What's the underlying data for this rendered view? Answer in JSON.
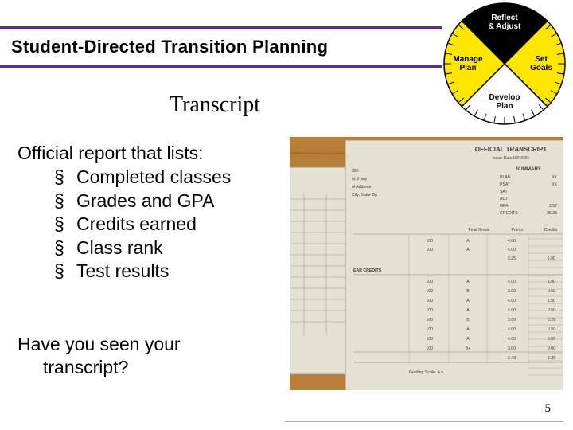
{
  "header": {
    "title": "Student-Directed Transition Planning",
    "band_border_color": "#5b2e8a"
  },
  "wheel": {
    "segments": [
      {
        "label_line1": "Reflect",
        "label_line2": "& Adjust",
        "fill": "#000000",
        "text_color": "#ffffff"
      },
      {
        "label_line1": "Set",
        "label_line2": "Goals",
        "fill": "#ffe600",
        "text_color": "#000000"
      },
      {
        "label_line1": "Develop",
        "label_line2": "Plan",
        "fill": "#ffffff",
        "text_color": "#000000"
      },
      {
        "label_line1": "Manage",
        "label_line2": "Plan",
        "fill": "#ffe600",
        "text_color": "#000000"
      }
    ],
    "segment_stroke": "#000000",
    "tick_stroke": "#000000",
    "label_fontsize": 10,
    "label_fontweight": "bold"
  },
  "subtitle": "Transcript",
  "content": {
    "lead": "Official report that lists:",
    "bullets": [
      "Completed classes",
      "Grades and GPA",
      "Credits earned",
      "Class rank",
      "Test results"
    ],
    "question_line1": "Have you seen your",
    "question_line2": "transcript?"
  },
  "photo": {
    "desk_color": "#b97d3a",
    "paper_color": "#e4e0d2",
    "paper_border": "#9a968a",
    "doc_title": "OFFICIAL TRANSCRIPT",
    "doc_subtitle": "Issue Date 09/15/01",
    "summary_label": "SUMMARY",
    "summary_rows": [
      [
        "PLAN",
        "XX"
      ],
      [
        "PSAT",
        "XX"
      ],
      [
        "SAT",
        ""
      ],
      [
        "ACT",
        ""
      ],
      [
        "GPA",
        "3.57"
      ],
      [
        "CREDITS",
        "25.25"
      ]
    ],
    "left_labels": [
      "396",
      "ol, if any",
      "ol Address",
      "City, State Zip"
    ],
    "grade_header": [
      "",
      "Final Grade",
      "Points",
      "Credits"
    ],
    "top_grade_rows": [
      [
        "100",
        "A",
        "4.00",
        ""
      ],
      [
        "100",
        "A",
        "4.00",
        ""
      ],
      [
        "",
        "",
        "3.25",
        "1.00"
      ]
    ],
    "ear_credits_label": "EAR CREDITS",
    "grade_rows": [
      [
        "100",
        "A",
        "4.00",
        "1.00"
      ],
      [
        "100",
        "B",
        "3.00",
        "0.50"
      ],
      [
        "100",
        "A",
        "4.00",
        "1.50"
      ],
      [
        "100",
        "A",
        "4.00",
        "0.50"
      ],
      [
        "100",
        "B",
        "3.00",
        "0.25"
      ],
      [
        "100",
        "A",
        "4.00",
        "0.50"
      ],
      [
        "100",
        "A",
        "4.00",
        "0.50"
      ],
      [
        "100",
        "B+",
        "3.00",
        "0.00"
      ],
      [
        "",
        "",
        "3.43",
        "3.25"
      ]
    ],
    "scale_note": "Grading Scale: A = ",
    "text_color": "#3a3a38",
    "line_color": "#8a887c",
    "fontsize_title": 8,
    "fontsize_body": 5.2
  },
  "typography": {
    "header_fontsize": 22,
    "subtitle_fontsize": 28,
    "body_fontsize": 23,
    "pagenum_fontsize": 15
  },
  "page_number": "5"
}
